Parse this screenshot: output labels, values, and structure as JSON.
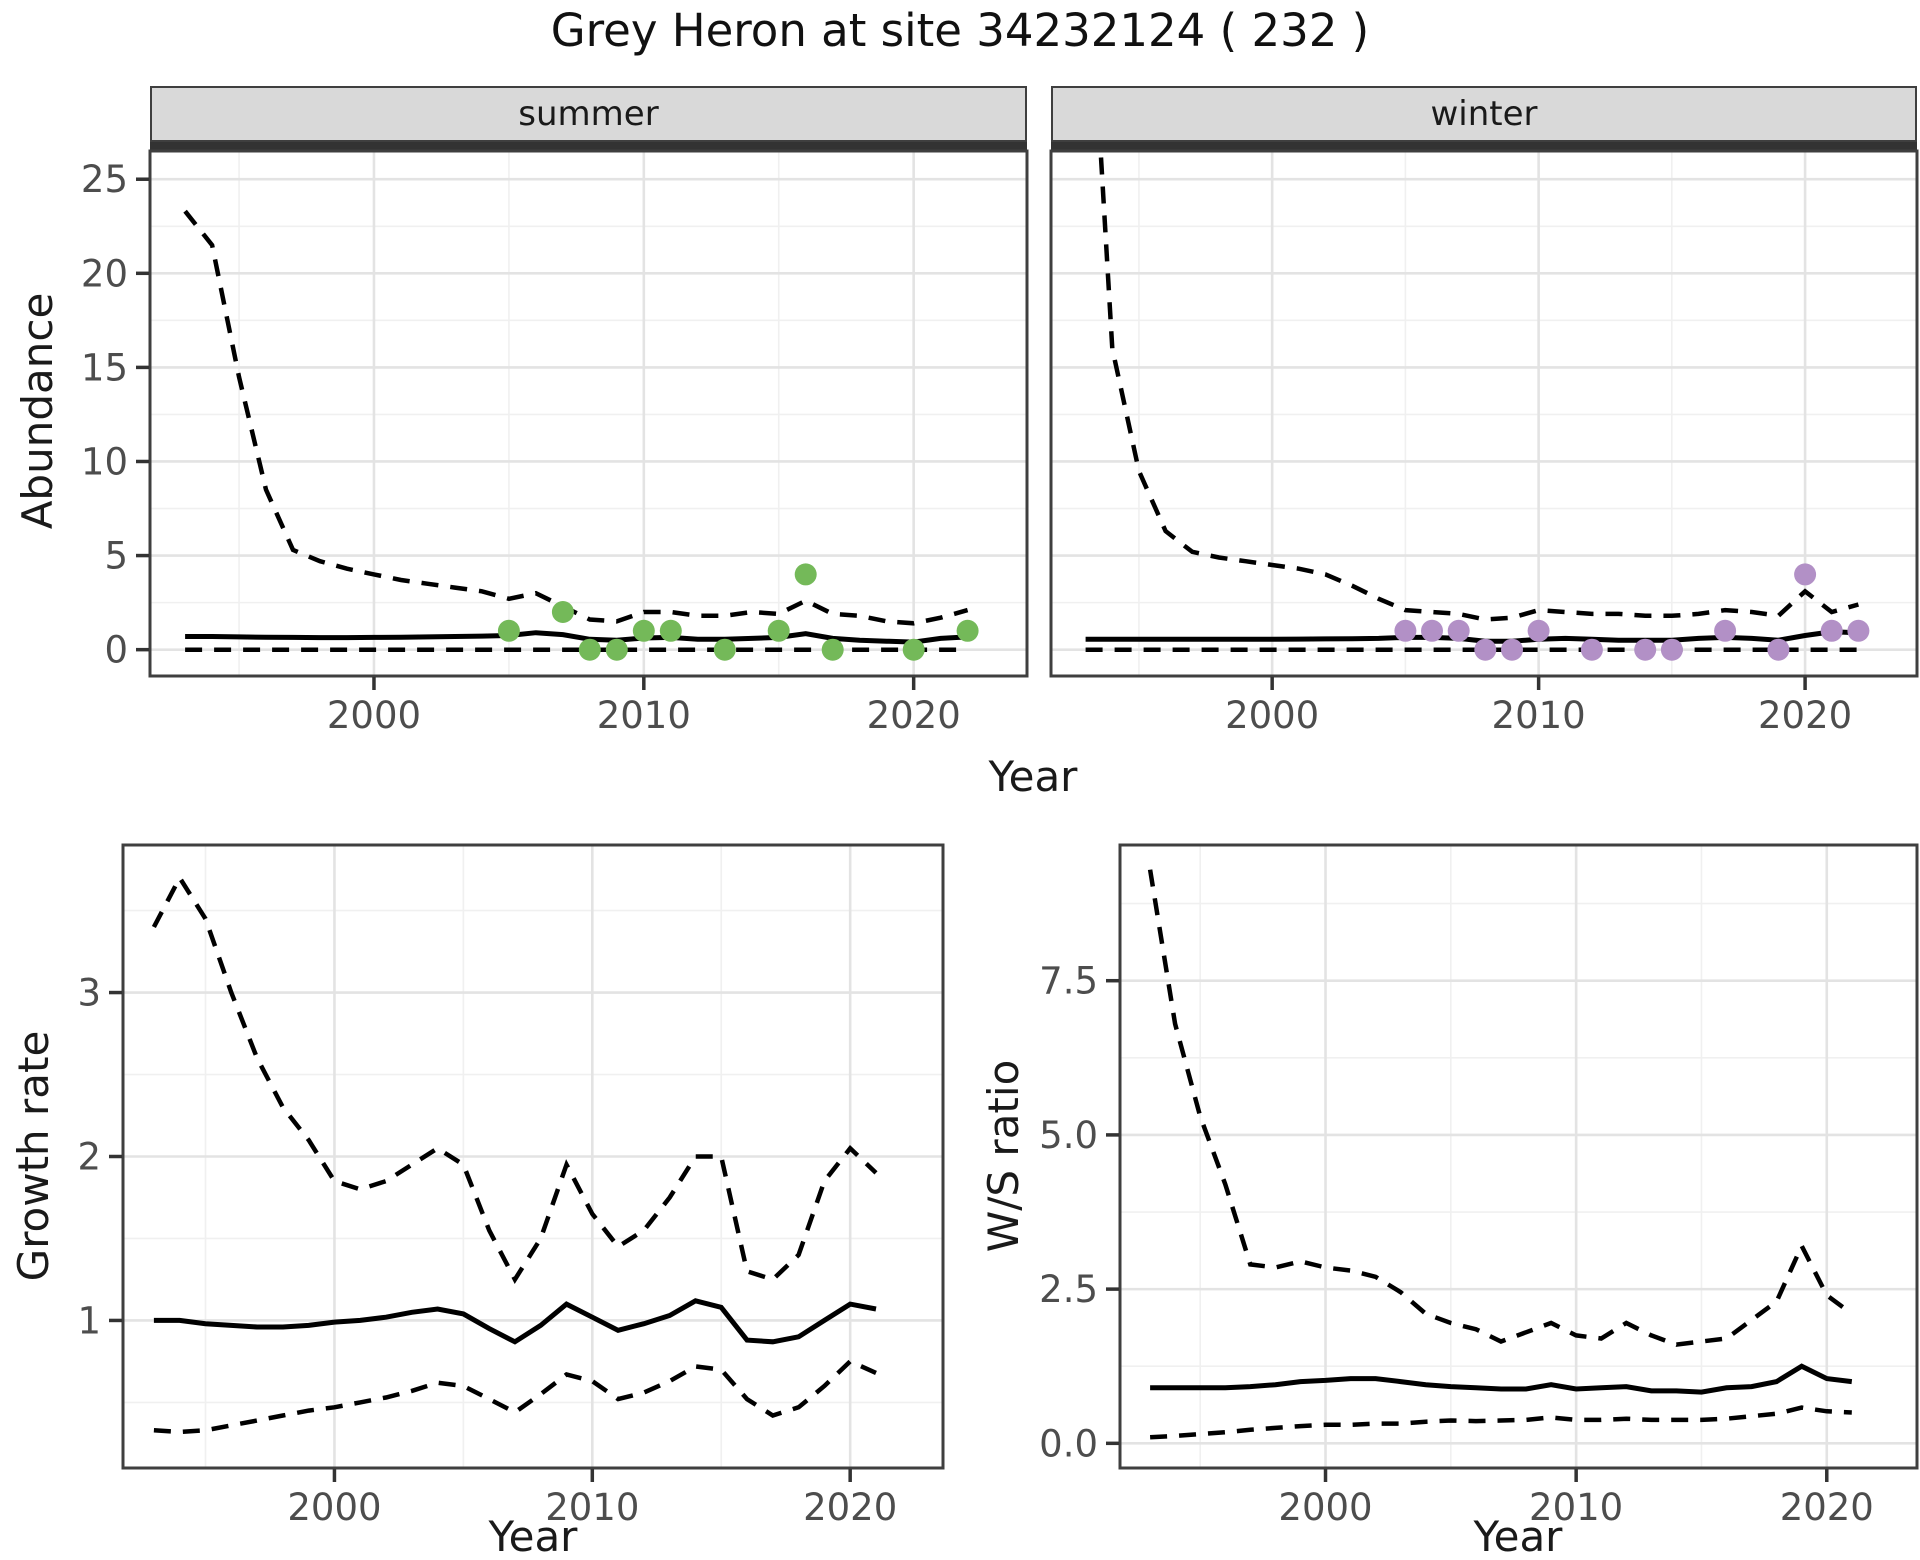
{
  "title": "Grey Heron at site 34232124 ( 232 )",
  "colors": {
    "summer_points": "#74B959",
    "winter_points": "#B290C6",
    "line": "#000000",
    "grid_major": "#E3E3E3",
    "grid_minor": "#F0F0F0",
    "panel_border": "#3F3F3F",
    "strip_bg": "#D9D9D9",
    "tick_text": "#4D4D4D"
  },
  "chart_data": [
    {
      "id": "abundance-summer",
      "type": "line+scatter",
      "facet_label": "summer",
      "ylabel": "Abundance",
      "xlabel": "Year",
      "x_ticks": [
        2000,
        2010,
        2020
      ],
      "x_tick_labels": [
        "2000",
        "2010",
        "2020"
      ],
      "y_ticks": [
        0,
        5,
        10,
        15,
        20,
        25
      ],
      "y_tick_labels": [
        "0",
        "5",
        "10",
        "15",
        "20",
        "25"
      ],
      "xlim": [
        1991.7,
        2024.2
      ],
      "ylim": [
        -1.4,
        26.5
      ],
      "grid": true,
      "years": [
        1993,
        1994,
        1995,
        1996,
        1997,
        1998,
        1999,
        2000,
        2001,
        2002,
        2003,
        2004,
        2005,
        2006,
        2007,
        2008,
        2009,
        2010,
        2011,
        2012,
        2013,
        2014,
        2015,
        2016,
        2017,
        2018,
        2019,
        2020,
        2021,
        2022
      ],
      "series": [
        {
          "name": "upper-ci",
          "style": "dashed",
          "values": [
            23.3,
            21.5,
            14.5,
            8.5,
            5.3,
            4.7,
            4.3,
            4.0,
            3.7,
            3.5,
            3.3,
            3.1,
            2.7,
            3.0,
            2.3,
            1.6,
            1.5,
            2.0,
            2.0,
            1.8,
            1.8,
            2.0,
            1.9,
            2.6,
            1.9,
            1.8,
            1.5,
            1.4,
            1.7,
            2.1
          ]
        },
        {
          "name": "median",
          "style": "solid",
          "values": [
            0.7,
            0.7,
            0.68,
            0.66,
            0.65,
            0.64,
            0.64,
            0.65,
            0.66,
            0.68,
            0.7,
            0.72,
            0.75,
            0.9,
            0.8,
            0.55,
            0.5,
            0.62,
            0.65,
            0.55,
            0.55,
            0.6,
            0.65,
            0.85,
            0.6,
            0.5,
            0.45,
            0.4,
            0.6,
            0.68
          ]
        },
        {
          "name": "lower-ci",
          "style": "dashed",
          "values": [
            0,
            0,
            0,
            0,
            0,
            0,
            0,
            0,
            0,
            0,
            0,
            0,
            0,
            0,
            0,
            0,
            0,
            0,
            0,
            0,
            0,
            0,
            0,
            0,
            0,
            0,
            0,
            0,
            0,
            0
          ]
        }
      ],
      "points": {
        "name": "observed-counts",
        "color": "#74B959",
        "data": [
          [
            2005,
            1
          ],
          [
            2007,
            2
          ],
          [
            2008,
            0
          ],
          [
            2009,
            0
          ],
          [
            2010,
            1
          ],
          [
            2011,
            1
          ],
          [
            2013,
            0
          ],
          [
            2015,
            1
          ],
          [
            2016,
            4
          ],
          [
            2017,
            0
          ],
          [
            2020,
            0
          ],
          [
            2022,
            1
          ]
        ]
      }
    },
    {
      "id": "abundance-winter",
      "type": "line+scatter",
      "facet_label": "winter",
      "ylabel": "Abundance",
      "xlabel": "Year",
      "x_ticks": [
        2000,
        2010,
        2020
      ],
      "x_tick_labels": [
        "2000",
        "2010",
        "2020"
      ],
      "y_ticks": [
        0,
        5,
        10,
        15,
        20,
        25
      ],
      "y_tick_labels": [
        "0",
        "5",
        "10",
        "15",
        "20",
        "25"
      ],
      "xlim": [
        1991.7,
        2024.2
      ],
      "ylim": [
        -1.4,
        26.5
      ],
      "grid": true,
      "years": [
        1993,
        1994,
        1995,
        1996,
        1997,
        1998,
        1999,
        2000,
        2001,
        2002,
        2003,
        2004,
        2005,
        2006,
        2007,
        2008,
        2009,
        2010,
        2011,
        2012,
        2013,
        2014,
        2015,
        2016,
        2017,
        2018,
        2019,
        2020,
        2021,
        2022
      ],
      "series": [
        {
          "name": "upper-ci",
          "style": "dashed",
          "values": [
            40,
            16,
            9.5,
            6.3,
            5.2,
            4.9,
            4.7,
            4.5,
            4.3,
            4.0,
            3.4,
            2.7,
            2.1,
            2.0,
            1.9,
            1.6,
            1.7,
            2.1,
            2.0,
            1.9,
            1.9,
            1.8,
            1.8,
            1.9,
            2.1,
            2.0,
            1.8,
            3.1,
            2.0,
            2.4
          ]
        },
        {
          "name": "median",
          "style": "solid",
          "values": [
            0.55,
            0.55,
            0.55,
            0.55,
            0.55,
            0.55,
            0.55,
            0.55,
            0.56,
            0.57,
            0.58,
            0.6,
            0.65,
            0.65,
            0.6,
            0.45,
            0.45,
            0.55,
            0.6,
            0.55,
            0.5,
            0.5,
            0.5,
            0.6,
            0.65,
            0.6,
            0.5,
            0.75,
            0.95,
            0.9
          ]
        },
        {
          "name": "lower-ci",
          "style": "dashed",
          "values": [
            0,
            0,
            0,
            0,
            0,
            0,
            0,
            0,
            0,
            0,
            0,
            0,
            0,
            0,
            0,
            0,
            0,
            0,
            0,
            0,
            0,
            0,
            0,
            0,
            0,
            0,
            0,
            0,
            0,
            0
          ]
        }
      ],
      "points": {
        "name": "observed-counts",
        "color": "#B290C6",
        "data": [
          [
            2005,
            1
          ],
          [
            2006,
            1
          ],
          [
            2007,
            1
          ],
          [
            2008,
            0
          ],
          [
            2009,
            0
          ],
          [
            2010,
            1
          ],
          [
            2012,
            0
          ],
          [
            2014,
            0
          ],
          [
            2015,
            0
          ],
          [
            2017,
            1
          ],
          [
            2019,
            0
          ],
          [
            2020,
            4
          ],
          [
            2021,
            1
          ],
          [
            2022,
            1
          ]
        ]
      }
    },
    {
      "id": "growth-rate",
      "type": "line",
      "facet_label": "",
      "ylabel": "Growth rate",
      "xlabel": "Year",
      "x_ticks": [
        2000,
        2010,
        2020
      ],
      "x_tick_labels": [
        "2000",
        "2010",
        "2020"
      ],
      "y_ticks": [
        1,
        2,
        3
      ],
      "y_tick_labels": [
        "1",
        "2",
        "3"
      ],
      "xlim": [
        1991.8,
        2023.6
      ],
      "ylim": [
        0.1,
        3.9
      ],
      "grid": true,
      "years": [
        1993,
        1994,
        1995,
        1996,
        1997,
        1998,
        1999,
        2000,
        2001,
        2002,
        2003,
        2004,
        2005,
        2006,
        2007,
        2008,
        2009,
        2010,
        2011,
        2012,
        2013,
        2014,
        2015,
        2016,
        2017,
        2018,
        2019,
        2020,
        2021
      ],
      "series": [
        {
          "name": "upper-ci",
          "style": "dashed",
          "values": [
            3.4,
            3.7,
            3.45,
            3.0,
            2.6,
            2.3,
            2.1,
            1.85,
            1.8,
            1.85,
            1.95,
            2.05,
            1.95,
            1.55,
            1.25,
            1.5,
            1.95,
            1.65,
            1.45,
            1.55,
            1.75,
            2.0,
            2.0,
            1.3,
            1.25,
            1.4,
            1.85,
            2.05,
            1.9
          ]
        },
        {
          "name": "median",
          "style": "solid",
          "values": [
            1.0,
            1.0,
            0.98,
            0.97,
            0.96,
            0.96,
            0.97,
            0.99,
            1.0,
            1.02,
            1.05,
            1.07,
            1.04,
            0.95,
            0.87,
            0.97,
            1.1,
            1.02,
            0.94,
            0.98,
            1.03,
            1.12,
            1.08,
            0.88,
            0.87,
            0.9,
            1.0,
            1.1,
            1.07
          ]
        },
        {
          "name": "lower-ci",
          "style": "dashed",
          "values": [
            0.33,
            0.32,
            0.33,
            0.36,
            0.39,
            0.42,
            0.45,
            0.47,
            0.5,
            0.53,
            0.57,
            0.62,
            0.6,
            0.52,
            0.44,
            0.55,
            0.67,
            0.63,
            0.52,
            0.56,
            0.63,
            0.72,
            0.7,
            0.52,
            0.42,
            0.47,
            0.6,
            0.75,
            0.68
          ]
        }
      ]
    },
    {
      "id": "ws-ratio",
      "type": "line",
      "facet_label": "",
      "ylabel": "W/S ratio",
      "xlabel": "Year",
      "x_ticks": [
        2000,
        2010,
        2020
      ],
      "x_tick_labels": [
        "2000",
        "2010",
        "2020"
      ],
      "y_ticks": [
        0,
        2.5,
        5,
        7.5
      ],
      "y_tick_labels": [
        "0.0",
        "2.5",
        "5.0",
        "7.5"
      ],
      "xlim": [
        1991.8,
        2023.6
      ],
      "ylim": [
        -0.4,
        9.7
      ],
      "grid": true,
      "years": [
        1993,
        1994,
        1995,
        1996,
        1997,
        1998,
        1999,
        2000,
        2001,
        2002,
        2003,
        2004,
        2005,
        2006,
        2007,
        2008,
        2009,
        2010,
        2011,
        2012,
        2013,
        2014,
        2015,
        2016,
        2017,
        2018,
        2019,
        2020,
        2021
      ],
      "series": [
        {
          "name": "upper-ci",
          "style": "dashed",
          "values": [
            9.3,
            6.8,
            5.3,
            4.2,
            2.9,
            2.85,
            2.95,
            2.85,
            2.8,
            2.7,
            2.45,
            2.1,
            1.95,
            1.85,
            1.65,
            1.8,
            1.95,
            1.75,
            1.7,
            1.95,
            1.75,
            1.6,
            1.65,
            1.7,
            2.0,
            2.3,
            3.2,
            2.4,
            2.1
          ]
        },
        {
          "name": "median",
          "style": "solid",
          "values": [
            0.9,
            0.9,
            0.9,
            0.9,
            0.92,
            0.95,
            1.0,
            1.02,
            1.05,
            1.05,
            1.0,
            0.95,
            0.92,
            0.9,
            0.88,
            0.88,
            0.95,
            0.88,
            0.9,
            0.92,
            0.85,
            0.85,
            0.83,
            0.9,
            0.92,
            1.0,
            1.25,
            1.05,
            1.0
          ]
        },
        {
          "name": "lower-ci",
          "style": "dashed",
          "values": [
            0.1,
            0.12,
            0.15,
            0.18,
            0.22,
            0.25,
            0.28,
            0.3,
            0.3,
            0.32,
            0.32,
            0.35,
            0.37,
            0.36,
            0.37,
            0.38,
            0.42,
            0.38,
            0.38,
            0.4,
            0.38,
            0.38,
            0.38,
            0.4,
            0.44,
            0.48,
            0.58,
            0.52,
            0.5
          ]
        }
      ]
    }
  ]
}
